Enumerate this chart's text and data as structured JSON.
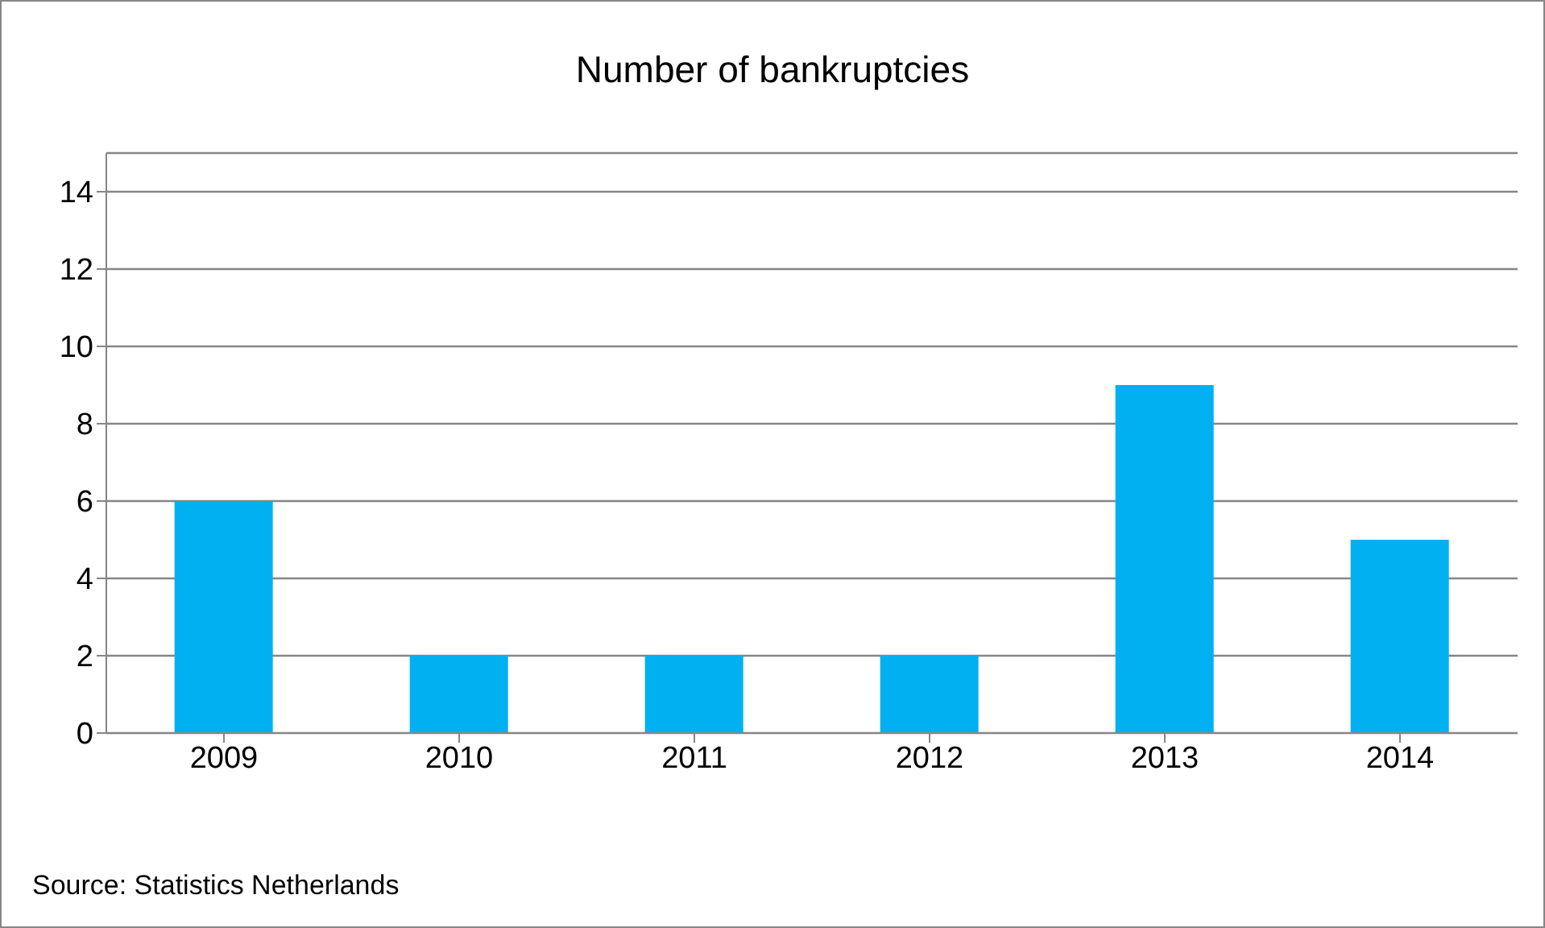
{
  "chart_data": {
    "type": "bar",
    "title": "Number of bankruptcies",
    "categories": [
      "2009",
      "2010",
      "2011",
      "2012",
      "2013",
      "2014"
    ],
    "values": [
      6,
      2,
      2,
      2,
      9,
      5
    ],
    "color": "#00b0f0",
    "ylim": [
      0,
      15
    ],
    "yticks": [
      0,
      2,
      4,
      6,
      8,
      10,
      12,
      14
    ],
    "grid": "y",
    "legend": false,
    "annotations": [
      "Source: Statistics Netherlands"
    ]
  }
}
